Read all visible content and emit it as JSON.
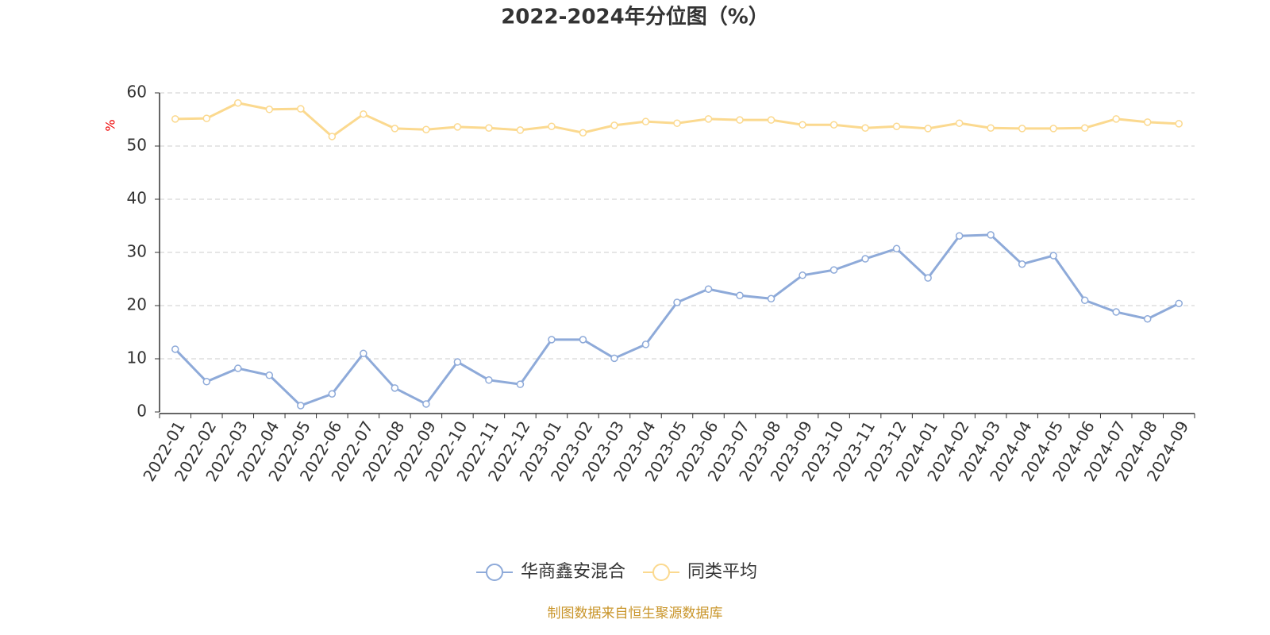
{
  "chart_data": {
    "type": "line",
    "title": "2022-2024年分位图（%）",
    "y_label": "%",
    "source": "制图数据来自恒生聚源数据库",
    "categories": [
      "2022-01",
      "2022-02",
      "2022-03",
      "2022-04",
      "2022-05",
      "2022-06",
      "2022-07",
      "2022-08",
      "2022-09",
      "2022-10",
      "2022-11",
      "2022-12",
      "2023-01",
      "2023-02",
      "2023-03",
      "2023-04",
      "2023-05",
      "2023-06",
      "2023-07",
      "2023-08",
      "2023-09",
      "2023-10",
      "2023-11",
      "2023-12",
      "2024-01",
      "2024-02",
      "2024-03",
      "2024-04",
      "2024-05",
      "2024-06",
      "2024-07",
      "2024-08",
      "2024-09"
    ],
    "series": [
      {
        "name": "华商鑫安混合",
        "color": "#8eaad9",
        "values": [
          11.8,
          5.7,
          8.2,
          6.9,
          1.2,
          3.4,
          11.0,
          4.5,
          1.5,
          9.4,
          6.0,
          5.2,
          13.6,
          13.6,
          10.1,
          12.7,
          20.6,
          23.1,
          21.9,
          21.3,
          25.7,
          26.7,
          28.8,
          30.7,
          25.2,
          33.1,
          33.3,
          27.8,
          29.4,
          21.0,
          18.8,
          17.5,
          20.4
        ]
      },
      {
        "name": "同类平均",
        "color": "#fbd98f",
        "values": [
          55.1,
          55.2,
          58.1,
          56.9,
          57.0,
          51.8,
          56.0,
          53.3,
          53.1,
          53.6,
          53.4,
          53.0,
          53.7,
          52.5,
          53.9,
          54.6,
          54.3,
          55.1,
          54.9,
          54.9,
          54.0,
          54.0,
          53.4,
          53.7,
          53.3,
          54.3,
          53.4,
          53.3,
          53.3,
          53.4,
          55.1,
          54.5,
          54.2
        ]
      }
    ],
    "ylim": [
      0,
      60
    ],
    "yticks": [
      0,
      10,
      20,
      30,
      40,
      50,
      60
    ],
    "grid": true
  }
}
